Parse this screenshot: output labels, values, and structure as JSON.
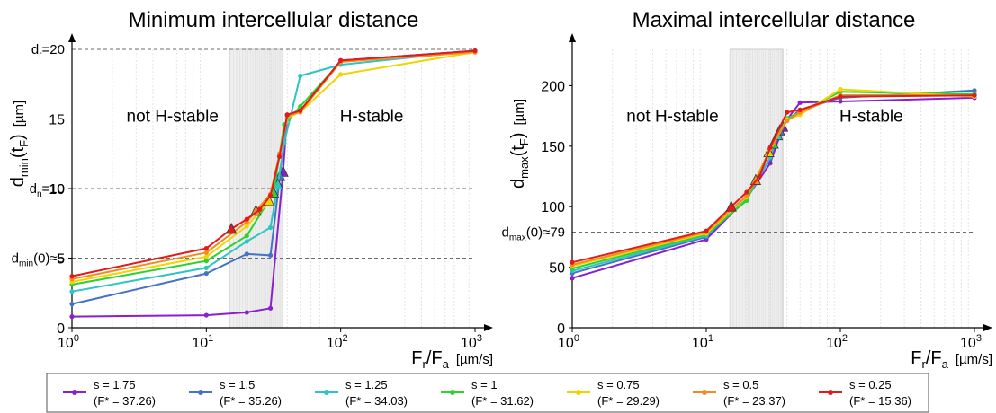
{
  "chart_data": [
    {
      "type": "line",
      "title": "Minimum intercellular distance",
      "ylabel": "d",
      "ylabel_sub": "min",
      "ylabel_arg": "(t",
      "ylabel_arg_sub": "F",
      "ylabel_close": ")",
      "yunit": "[µm]",
      "xlabel_main": "F",
      "xlabel_sub1": "r",
      "xlabel_slash": "/F",
      "xlabel_sub2": "a",
      "xunit": "[µm/s]",
      "x_scale": "log",
      "xlim": [
        1,
        1000
      ],
      "ylim": [
        0,
        20
      ],
      "yticks": [
        0,
        5,
        10,
        15
      ],
      "xtick_exponents": [
        "0",
        "1",
        "2",
        "3"
      ],
      "shaded_region": [
        15,
        37.26
      ],
      "region_left_label": "not H-stable",
      "region_right_label": "H-stable",
      "reference_lines": [
        {
          "y": 20,
          "prefix": "d",
          "sub": "r",
          "suffix": "=20"
        },
        {
          "y": 10,
          "prefix": "d",
          "sub": "n",
          "suffix": "=10"
        },
        {
          "y": 5,
          "prefix": "d",
          "sub": "min",
          "suffix": "(0)≈5"
        }
      ],
      "series": [
        {
          "name": "s = 1.75",
          "color": "#8a1fd1",
          "x": [
            1,
            10,
            20,
            30,
            37.26,
            40,
            50,
            100,
            1000
          ],
          "y": [
            0.8,
            0.9,
            1.1,
            1.4,
            11.2,
            15.3,
            15.6,
            19.2,
            19.9
          ],
          "marker_x": 37.26,
          "marker_y": 11.2
        },
        {
          "name": "s = 1.5",
          "color": "#4472c4",
          "x": [
            1,
            10,
            20,
            30,
            35.26,
            40,
            50,
            100,
            1000
          ],
          "y": [
            1.7,
            3.9,
            5.3,
            5.2,
            10.9,
            15.3,
            15.6,
            19.2,
            19.9
          ],
          "marker_x": 35.26,
          "marker_y": 10.9
        },
        {
          "name": "s = 1.25",
          "color": "#2ec4c4",
          "x": [
            1,
            10,
            20,
            30,
            34.03,
            38,
            50,
            100,
            1000
          ],
          "y": [
            2.6,
            4.3,
            6.2,
            7.2,
            10.3,
            13.3,
            18.1,
            18.9,
            19.9
          ],
          "marker_x": 34.03,
          "marker_y": 10.3
        },
        {
          "name": "s = 1",
          "color": "#2ed12e",
          "x": [
            1,
            10,
            20,
            31.62,
            38,
            50,
            100,
            1000
          ],
          "y": [
            3.1,
            4.8,
            6.6,
            9.7,
            14.6,
            15.9,
            19.1,
            19.9
          ],
          "marker_x": 31.62,
          "marker_y": 9.7
        },
        {
          "name": "s = 0.75",
          "color": "#f0d400",
          "x": [
            1,
            10,
            20,
            29.29,
            35,
            40,
            50,
            100,
            1000
          ],
          "y": [
            3.3,
            5.1,
            7.3,
            9.1,
            12.3,
            15.1,
            15.5,
            18.2,
            19.8
          ],
          "marker_x": 29.29,
          "marker_y": 9.1
        },
        {
          "name": "s = 0.5",
          "color": "#f28c1e",
          "x": [
            1,
            10,
            20,
            23.37,
            30,
            35,
            40,
            50,
            100,
            1000
          ],
          "y": [
            3.5,
            5.4,
            7.6,
            8.4,
            9.6,
            12.5,
            15.2,
            15.5,
            19.1,
            19.8
          ],
          "marker_x": 23.37,
          "marker_y": 8.4
        },
        {
          "name": "s = 0.25",
          "color": "#e31a1c",
          "x": [
            1,
            10,
            15.36,
            20,
            25,
            30,
            35,
            40,
            50,
            100,
            1000
          ],
          "y": [
            3.7,
            5.7,
            7.1,
            7.8,
            8.5,
            9.5,
            12.3,
            15.3,
            15.6,
            19.2,
            19.9
          ],
          "marker_x": 15.36,
          "marker_y": 7.1
        }
      ]
    },
    {
      "type": "line",
      "title": "Maximal intercellular distance",
      "ylabel": "d",
      "ylabel_sub": "max",
      "ylabel_arg": "(t",
      "ylabel_arg_sub": "F",
      "ylabel_close": ")",
      "yunit": "[µm]",
      "xlabel_main": "F",
      "xlabel_sub1": "r",
      "xlabel_slash": "/F",
      "xlabel_sub2": "a",
      "xunit": "[µm/s]",
      "x_scale": "log",
      "xlim": [
        1,
        1000
      ],
      "ylim": [
        0,
        230
      ],
      "yticks": [
        0,
        50,
        100,
        150,
        200
      ],
      "xtick_exponents": [
        "0",
        "1",
        "2",
        "3"
      ],
      "shaded_region": [
        15,
        37.26
      ],
      "region_left_label": "not H-stable",
      "region_right_label": "H-stable",
      "reference_lines": [
        {
          "y": 79,
          "prefix": "d",
          "sub": "max",
          "suffix": "(0)≈79"
        }
      ],
      "series": [
        {
          "name": "s = 1.75",
          "color": "#8a1fd1",
          "x": [
            1,
            10,
            20,
            30,
            37.26,
            40,
            50,
            100,
            1000
          ],
          "y": [
            41,
            73,
            107,
            136,
            166,
            172,
            186,
            187,
            190
          ],
          "marker_x": 37.26,
          "marker_y": 166
        },
        {
          "name": "s = 1.5",
          "color": "#4472c4",
          "x": [
            1,
            10,
            20,
            30,
            35.26,
            40,
            50,
            100,
            1000
          ],
          "y": [
            45,
            75,
            108,
            140,
            163,
            171,
            180,
            190,
            196
          ],
          "marker_x": 35.26,
          "marker_y": 163
        },
        {
          "name": "s = 1.25",
          "color": "#2ec4c4",
          "x": [
            1,
            10,
            20,
            30,
            34.03,
            40,
            50,
            100,
            1000
          ],
          "y": [
            47,
            76,
            106,
            141,
            159,
            171,
            178,
            192,
            193
          ],
          "marker_x": 34.03,
          "marker_y": 159
        },
        {
          "name": "s = 1",
          "color": "#2ed12e",
          "x": [
            1,
            10,
            20,
            31.62,
            40,
            50,
            100,
            1000
          ],
          "y": [
            49,
            77,
            105,
            152,
            173,
            178,
            195,
            193
          ],
          "marker_x": 31.62,
          "marker_y": 152
        },
        {
          "name": "s = 0.75",
          "color": "#f0d400",
          "x": [
            1,
            10,
            20,
            29.29,
            40,
            50,
            100,
            1000
          ],
          "y": [
            51,
            78,
            108,
            145,
            172,
            176,
            197,
            191
          ],
          "marker_x": 29.29,
          "marker_y": 145
        },
        {
          "name": "s = 0.5",
          "color": "#f28c1e",
          "x": [
            1,
            10,
            20,
            23.37,
            30,
            40,
            50,
            100,
            1000
          ],
          "y": [
            52,
            79,
            109,
            122,
            148,
            171,
            178,
            192,
            192
          ],
          "marker_x": 23.37,
          "marker_y": 122
        },
        {
          "name": "s = 0.25",
          "color": "#e31a1c",
          "x": [
            1,
            10,
            15.36,
            20,
            25,
            30,
            40,
            50,
            100,
            1000
          ],
          "y": [
            54,
            80,
            100,
            112,
            125,
            149,
            178,
            180,
            191,
            192
          ],
          "marker_x": 15.36,
          "marker_y": 100
        }
      ]
    }
  ],
  "legend": {
    "items": [
      {
        "label": "s = 1.75",
        "fstar": "(F* = 37.26)",
        "color": "#8a1fd1"
      },
      {
        "label": "s = 1.5",
        "fstar": "(F* = 35.26)",
        "color": "#4472c4"
      },
      {
        "label": "s = 1.25",
        "fstar": "(F* = 34.03)",
        "color": "#2ec4c4"
      },
      {
        "label": "s = 1",
        "fstar": "(F* = 31.62)",
        "color": "#2ed12e"
      },
      {
        "label": "s = 0.75",
        "fstar": "(F* = 29.29)",
        "color": "#f0d400"
      },
      {
        "label": "s = 0.5",
        "fstar": "(F* = 23.37)",
        "color": "#f28c1e"
      },
      {
        "label": "s = 0.25",
        "fstar": "(F* = 15.36)",
        "color": "#e31a1c"
      }
    ]
  }
}
